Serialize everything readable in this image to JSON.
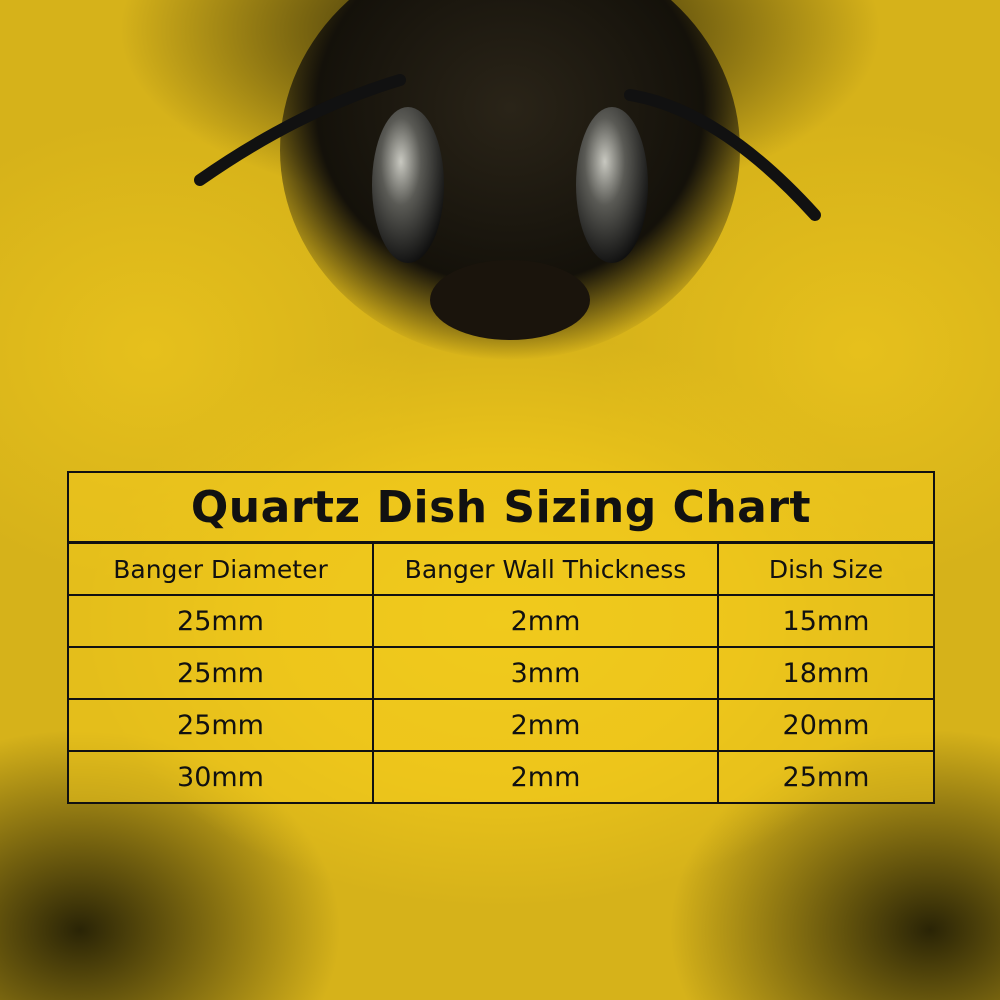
{
  "title": "Quartz Dish Sizing Chart",
  "headers": [
    "Banger Diameter",
    "Banger Wall Thickness",
    "Dish Size"
  ],
  "rows": [
    [
      "25mm",
      "2mm",
      "15mm"
    ],
    [
      "25mm",
      "3mm",
      "18mm"
    ],
    [
      "25mm",
      "2mm",
      "20mm"
    ],
    [
      "30mm",
      "2mm",
      "25mm"
    ]
  ],
  "colors": {
    "background": "#e9c21a",
    "text": "#111111",
    "border": "#111111"
  }
}
